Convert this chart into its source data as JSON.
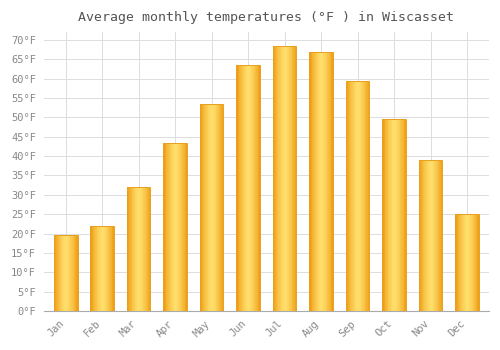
{
  "title": "Average monthly temperatures (°F ) in Wiscasset",
  "months": [
    "Jan",
    "Feb",
    "Mar",
    "Apr",
    "May",
    "Jun",
    "Jul",
    "Aug",
    "Sep",
    "Oct",
    "Nov",
    "Dec"
  ],
  "values": [
    19.5,
    22.0,
    32.0,
    43.5,
    53.5,
    63.5,
    68.5,
    67.0,
    59.5,
    49.5,
    39.0,
    25.0
  ],
  "bar_color_main": "#FDB93A",
  "bar_color_light": "#FED97A",
  "bar_color_edge": "#E8A020",
  "background_color": "#ffffff",
  "grid_color": "#dddddd",
  "text_color": "#888888",
  "title_color": "#555555",
  "ylim": [
    0,
    72
  ],
  "yticks": [
    0,
    5,
    10,
    15,
    20,
    25,
    30,
    35,
    40,
    45,
    50,
    55,
    60,
    65,
    70
  ],
  "ytick_labels": [
    "0°F",
    "5°F",
    "10°F",
    "15°F",
    "20°F",
    "25°F",
    "30°F",
    "35°F",
    "40°F",
    "45°F",
    "50°F",
    "55°F",
    "60°F",
    "65°F",
    "70°F"
  ],
  "title_fontsize": 9.5,
  "tick_fontsize": 7.5,
  "font_family": "monospace",
  "bar_width": 0.65
}
